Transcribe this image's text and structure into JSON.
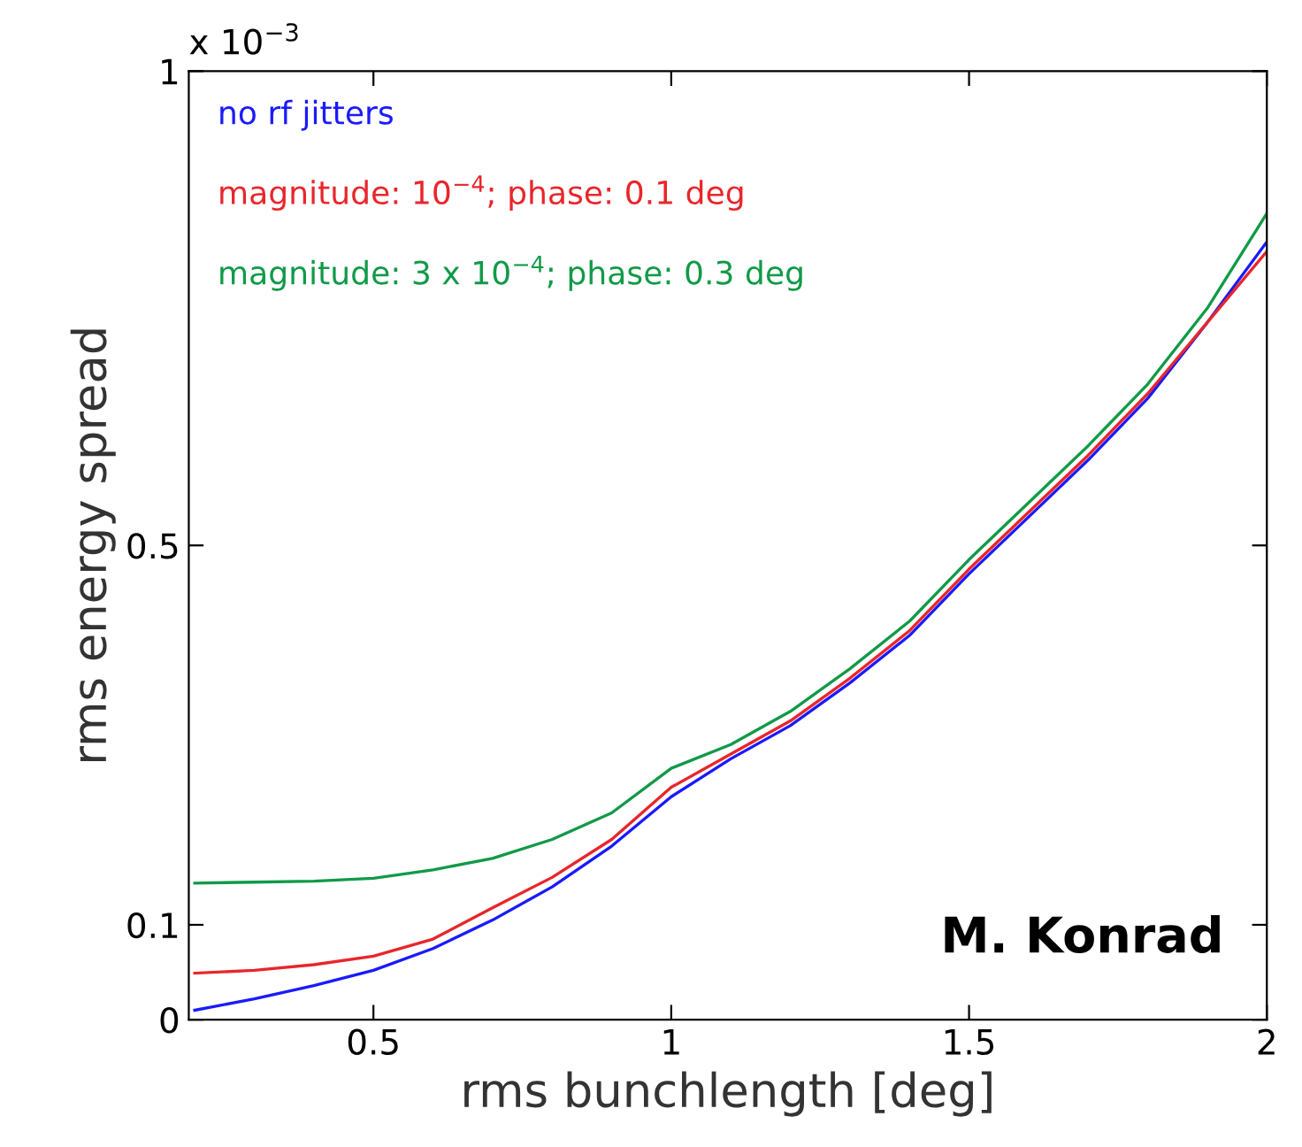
{
  "chart_data": {
    "type": "line",
    "xlabel": "rms bunchlength [deg]",
    "ylabel": "rms energy spread",
    "annotations": [
      "x 10$^{−3}$",
      "M. Konrad"
    ],
    "x": [
      0.2,
      0.3,
      0.4,
      0.5,
      0.6,
      0.7,
      0.8,
      0.9,
      1.0,
      1.1,
      1.2,
      1.3,
      1.4,
      1.5,
      1.6,
      1.7,
      1.8,
      1.9,
      2.0
    ],
    "series": [
      {
        "name": "no rf jitters",
        "color": "#1a1aff",
        "values": [
          0.01,
          0.022,
          0.036,
          0.052,
          0.075,
          0.105,
          0.14,
          0.183,
          0.235,
          0.275,
          0.31,
          0.355,
          0.405,
          0.47,
          0.53,
          0.59,
          0.655,
          0.735,
          0.82
        ]
      },
      {
        "name": "magnitude: 10$^{−4}$; phase: 0.1 deg",
        "color": "#e8262b",
        "values": [
          0.049,
          0.052,
          0.058,
          0.067,
          0.085,
          0.118,
          0.15,
          0.19,
          0.245,
          0.28,
          0.315,
          0.36,
          0.41,
          0.475,
          0.535,
          0.595,
          0.66,
          0.735,
          0.81
        ]
      },
      {
        "name": "magnitude: 3 x 10$^{−4}$; phase: 0.3 deg",
        "color": "#109a48",
        "values": [
          0.144,
          0.145,
          0.146,
          0.149,
          0.158,
          0.17,
          0.19,
          0.218,
          0.265,
          0.29,
          0.325,
          0.37,
          0.42,
          0.485,
          0.545,
          0.605,
          0.67,
          0.75,
          0.85
        ]
      }
    ],
    "xlim": [
      0.19,
      2
    ],
    "ylim": [
      0,
      1
    ],
    "xticks": [
      0.5,
      1,
      1.5,
      2
    ],
    "yticks": [
      0,
      0.1,
      0.5,
      1
    ],
    "grid": false,
    "legend": "top left",
    "marker": "none",
    "line_style": "solid"
  }
}
